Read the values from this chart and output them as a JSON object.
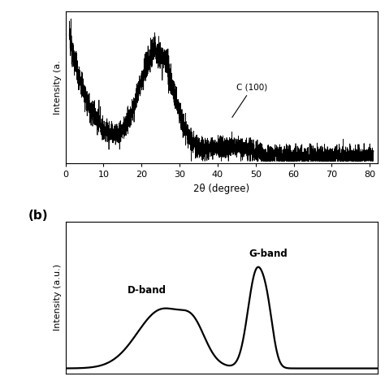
{
  "xrd_xlabel": "2θ (degree)",
  "xrd_xlim": [
    0,
    82
  ],
  "xrd_xticks": [
    0,
    10,
    20,
    30,
    40,
    50,
    60,
    70,
    80
  ],
  "xrd_annotation": "C (100)",
  "raman_dband_label": "D-band",
  "raman_gband_label": "G-band",
  "panel_b_label": "(b)",
  "line_color": "#000000",
  "background_color": "#ffffff"
}
